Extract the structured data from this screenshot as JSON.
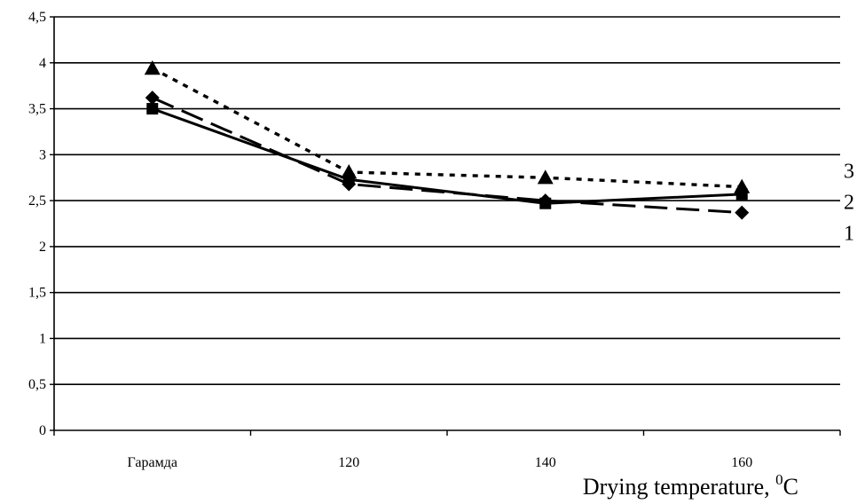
{
  "chart_data": {
    "type": "line",
    "title": "",
    "xlabel": "Drying temperature, ",
    "xlabel_sup": "0",
    "xlabel_unit": "C",
    "ylabel": "",
    "categories": [
      "Гарамда",
      "120",
      "140",
      "160"
    ],
    "ylim": [
      0,
      4.5
    ],
    "yticks": [
      "0",
      "0,5",
      "1",
      "1,5",
      "2",
      "2,5",
      "3",
      "3,5",
      "4",
      "4,5"
    ],
    "grid": true,
    "series": [
      {
        "label": "1",
        "marker": "diamond",
        "line": "long-dash",
        "values": [
          3.62,
          2.68,
          2.5,
          2.37
        ]
      },
      {
        "label": "2",
        "marker": "square",
        "line": "solid",
        "values": [
          3.5,
          2.73,
          2.47,
          2.57
        ]
      },
      {
        "label": "3",
        "marker": "triangle",
        "line": "dotted",
        "values": [
          3.94,
          2.81,
          2.75,
          2.65
        ]
      }
    ],
    "line_color": "#000000"
  }
}
